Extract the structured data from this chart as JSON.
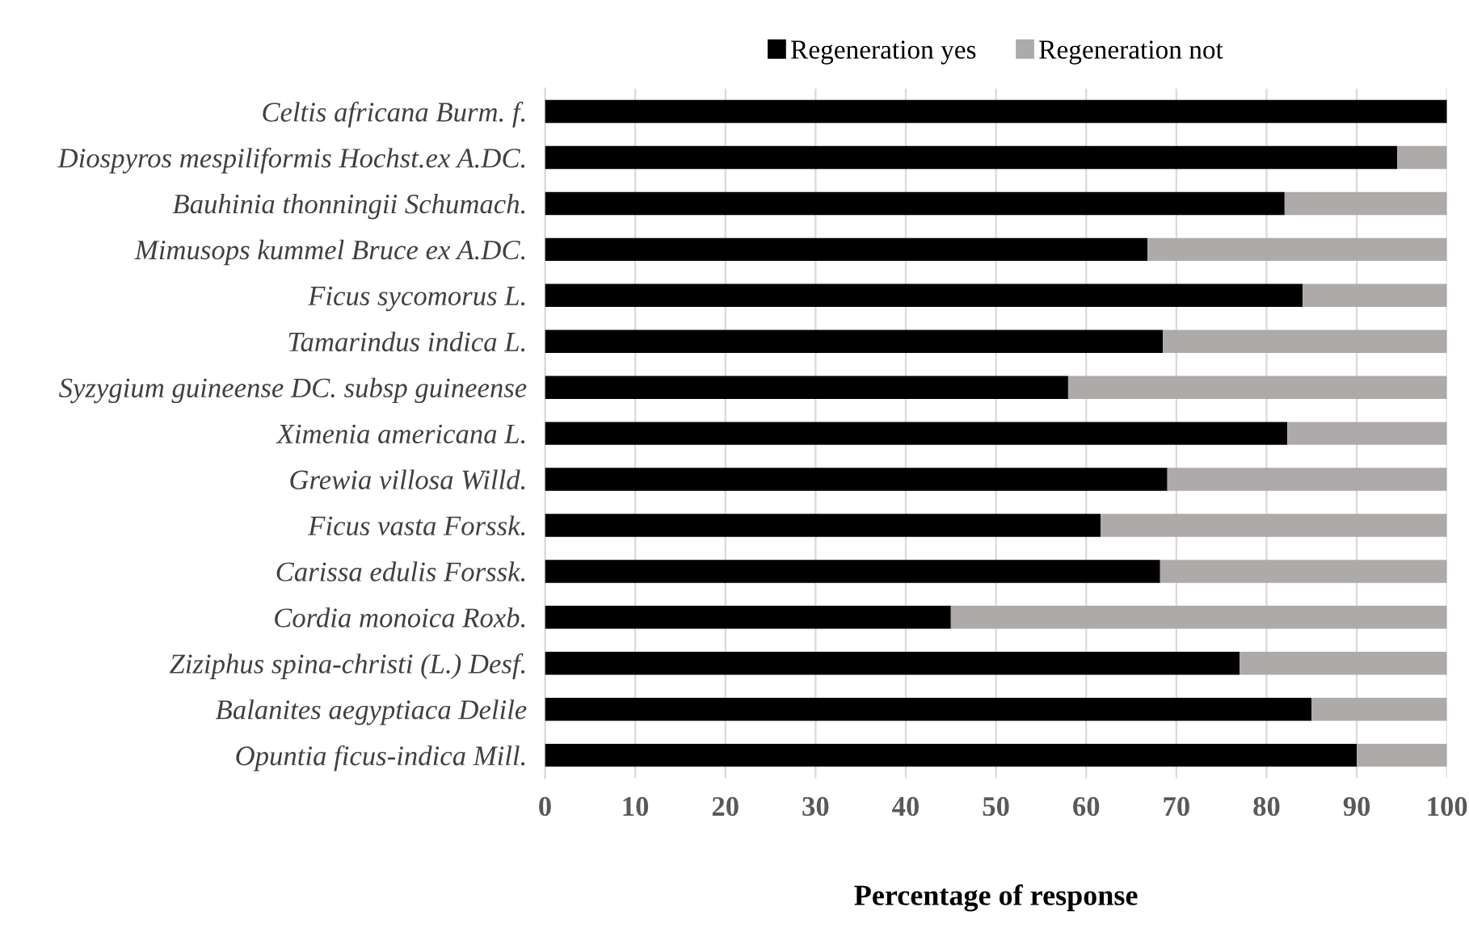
{
  "chart_data": {
    "type": "bar",
    "orientation": "horizontal",
    "stacked": true,
    "xlabel": "Percentage of response",
    "categories": [
      "Celtis africana Burm. f.",
      "Diospyros mespiliformis Hochst.ex A.DC.",
      "Bauhinia thonningii Schumach.",
      "Mimusops kummel Bruce ex A.DC.",
      "Ficus sycomorus L.",
      "Tamarindus indica L.",
      "Syzygium guineense DC. subsp guineense",
      "Ximenia americana L.",
      "Grewia villosa Willd.",
      "Ficus vasta Forssk.",
      "Carissa edulis Forssk.",
      "Cordia monoica Roxb.",
      "Ziziphus spina-christi (L.) Desf.",
      "Balanites aegyptiaca Delile",
      "Opuntia ficus-indica Mill."
    ],
    "series": [
      {
        "name": "Regeneration yes",
        "color": "#000000",
        "values": [
          100,
          94.5,
          82,
          66.8,
          84,
          68.5,
          58,
          82.3,
          69,
          61.6,
          68.2,
          45,
          77,
          85,
          90
        ]
      },
      {
        "name": "Regeneration not",
        "color": "#aeaaaa",
        "values": [
          0,
          5.5,
          18,
          33.2,
          16,
          31.5,
          42,
          17.7,
          31,
          38.4,
          31.8,
          55,
          23,
          15,
          10
        ]
      }
    ],
    "xlim": [
      0,
      100
    ],
    "xticks": [
      0,
      10,
      20,
      30,
      40,
      50,
      60,
      70,
      80,
      90,
      100
    ],
    "grid": "x",
    "legend": "top"
  }
}
